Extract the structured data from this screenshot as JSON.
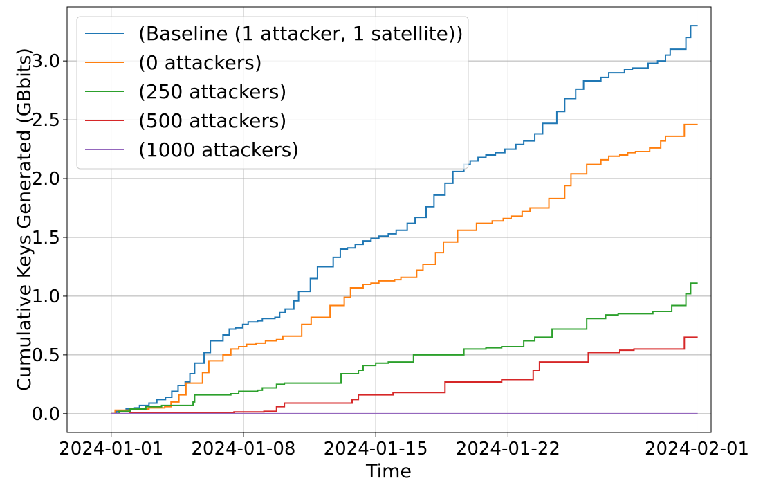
{
  "chart_data": {
    "type": "line",
    "step": true,
    "title": "",
    "xlabel": "Time",
    "ylabel": "Cumulative Keys Generated (GBbits)",
    "xlim": [
      "2023-12-29T16:00",
      "2024-02-01T18:00"
    ],
    "ylim": [
      -0.16,
      3.46
    ],
    "x_ticks": [
      "2024-01-01",
      "2024-01-08",
      "2024-01-15",
      "2024-01-22",
      "2024-02-01"
    ],
    "y_ticks": [
      0.0,
      0.5,
      1.0,
      1.5,
      2.0,
      2.5,
      3.0
    ],
    "y_tick_labels": [
      "0.0",
      "0.5",
      "1.0",
      "1.5",
      "2.0",
      "2.5",
      "3.0"
    ],
    "grid": true,
    "legend_position": "top-left",
    "series": [
      {
        "name": "(Baseline (1 attacker, 1 satellite))",
        "color": "#1f77b4",
        "points": [
          [
            "2024-01-01T00:00",
            0.0
          ],
          [
            "2024-01-01T07:00",
            0.02
          ],
          [
            "2024-01-01T19:00",
            0.04
          ],
          [
            "2024-01-02T05:00",
            0.05
          ],
          [
            "2024-01-02T12:00",
            0.07
          ],
          [
            "2024-01-03T00:00",
            0.09
          ],
          [
            "2024-01-03T10:00",
            0.12
          ],
          [
            "2024-01-03T21:00",
            0.14
          ],
          [
            "2024-01-04T05:00",
            0.19
          ],
          [
            "2024-01-04T13:00",
            0.24
          ],
          [
            "2024-01-04T22:00",
            0.27
          ],
          [
            "2024-01-05T04:00",
            0.34
          ],
          [
            "2024-01-05T10:00",
            0.43
          ],
          [
            "2024-01-05T22:00",
            0.52
          ],
          [
            "2024-01-06T06:00",
            0.62
          ],
          [
            "2024-01-06T16:00",
            0.62
          ],
          [
            "2024-01-06T22:00",
            0.67
          ],
          [
            "2024-01-07T06:00",
            0.72
          ],
          [
            "2024-01-07T14:00",
            0.73
          ],
          [
            "2024-01-07T23:00",
            0.76
          ],
          [
            "2024-01-08T06:00",
            0.78
          ],
          [
            "2024-01-08T18:00",
            0.79
          ],
          [
            "2024-01-09T00:00",
            0.81
          ],
          [
            "2024-01-09T16:00",
            0.82
          ],
          [
            "2024-01-09T22:00",
            0.86
          ],
          [
            "2024-01-10T05:00",
            0.89
          ],
          [
            "2024-01-10T16:00",
            0.96
          ],
          [
            "2024-01-10T22:00",
            1.04
          ],
          [
            "2024-01-11T13:00",
            1.15
          ],
          [
            "2024-01-11T22:00",
            1.25
          ],
          [
            "2024-01-12T18:00",
            1.33
          ],
          [
            "2024-01-13T03:00",
            1.4
          ],
          [
            "2024-01-13T12:00",
            1.41
          ],
          [
            "2024-01-13T22:00",
            1.44
          ],
          [
            "2024-01-14T08:00",
            1.47
          ],
          [
            "2024-01-14T18:00",
            1.49
          ],
          [
            "2024-01-15T04:00",
            1.51
          ],
          [
            "2024-01-15T16:00",
            1.53
          ],
          [
            "2024-01-16T02:00",
            1.56
          ],
          [
            "2024-01-16T16:00",
            1.62
          ],
          [
            "2024-01-17T02:00",
            1.67
          ],
          [
            "2024-01-17T16:00",
            1.76
          ],
          [
            "2024-01-18T02:00",
            1.86
          ],
          [
            "2024-01-18T16:00",
            1.96
          ],
          [
            "2024-01-19T02:00",
            2.06
          ],
          [
            "2024-01-19T16:00",
            2.12
          ],
          [
            "2024-01-20T00:00",
            2.15
          ],
          [
            "2024-01-20T10:00",
            2.18
          ],
          [
            "2024-01-20T20:00",
            2.2
          ],
          [
            "2024-01-21T08:00",
            2.22
          ],
          [
            "2024-01-21T20:00",
            2.25
          ],
          [
            "2024-01-22T10:00",
            2.29
          ],
          [
            "2024-01-22T20:00",
            2.32
          ],
          [
            "2024-01-23T10:00",
            2.38
          ],
          [
            "2024-01-23T20:00",
            2.47
          ],
          [
            "2024-01-24T14:00",
            2.57
          ],
          [
            "2024-01-25T00:00",
            2.68
          ],
          [
            "2024-01-25T14:00",
            2.76
          ],
          [
            "2024-01-26T00:00",
            2.83
          ],
          [
            "2024-01-26T22:00",
            2.86
          ],
          [
            "2024-01-27T08:00",
            2.9
          ],
          [
            "2024-01-28T04:00",
            2.93
          ],
          [
            "2024-01-28T14:00",
            2.94
          ],
          [
            "2024-01-29T10:00",
            2.98
          ],
          [
            "2024-01-29T22:00",
            3.0
          ],
          [
            "2024-01-30T08:00",
            3.05
          ],
          [
            "2024-01-30T14:00",
            3.1
          ],
          [
            "2024-01-31T10:00",
            3.2
          ],
          [
            "2024-01-31T16:00",
            3.3
          ],
          [
            "2024-02-01T01:00",
            3.3
          ]
        ]
      },
      {
        "name": "(0 attackers)",
        "color": "#ff7f0e",
        "points": [
          [
            "2024-01-01T00:00",
            0.0
          ],
          [
            "2024-01-01T05:00",
            0.03
          ],
          [
            "2024-01-02T00:00",
            0.04
          ],
          [
            "2024-01-03T00:00",
            0.05
          ],
          [
            "2024-01-03T20:00",
            0.06
          ],
          [
            "2024-01-04T04:00",
            0.1
          ],
          [
            "2024-01-04T14:00",
            0.16
          ],
          [
            "2024-01-04T23:00",
            0.26
          ],
          [
            "2024-01-05T20:00",
            0.35
          ],
          [
            "2024-01-06T04:00",
            0.45
          ],
          [
            "2024-01-06T22:00",
            0.5
          ],
          [
            "2024-01-07T08:00",
            0.55
          ],
          [
            "2024-01-07T18:00",
            0.57
          ],
          [
            "2024-01-08T04:00",
            0.59
          ],
          [
            "2024-01-08T16:00",
            0.6
          ],
          [
            "2024-01-09T04:00",
            0.62
          ],
          [
            "2024-01-09T18:00",
            0.63
          ],
          [
            "2024-01-10T02:00",
            0.66
          ],
          [
            "2024-01-11T02:00",
            0.76
          ],
          [
            "2024-01-11T14:00",
            0.82
          ],
          [
            "2024-01-12T14:00",
            0.92
          ],
          [
            "2024-01-13T08:00",
            0.99
          ],
          [
            "2024-01-13T16:00",
            1.07
          ],
          [
            "2024-01-14T08:00",
            1.1
          ],
          [
            "2024-01-14T18:00",
            1.11
          ],
          [
            "2024-01-15T04:00",
            1.13
          ],
          [
            "2024-01-16T00:00",
            1.14
          ],
          [
            "2024-01-16T08:00",
            1.16
          ],
          [
            "2024-01-17T04:00",
            1.22
          ],
          [
            "2024-01-17T12:00",
            1.27
          ],
          [
            "2024-01-18T04:00",
            1.37
          ],
          [
            "2024-01-18T14:00",
            1.46
          ],
          [
            "2024-01-19T08:00",
            1.56
          ],
          [
            "2024-01-20T08:00",
            1.62
          ],
          [
            "2024-01-21T04:00",
            1.64
          ],
          [
            "2024-01-21T18:00",
            1.66
          ],
          [
            "2024-01-22T04:00",
            1.68
          ],
          [
            "2024-01-22T18:00",
            1.72
          ],
          [
            "2024-01-23T04:00",
            1.75
          ],
          [
            "2024-01-24T04:00",
            1.83
          ],
          [
            "2024-01-25T00:00",
            1.94
          ],
          [
            "2024-01-25T08:00",
            2.04
          ],
          [
            "2024-01-26T04:00",
            2.12
          ],
          [
            "2024-01-26T22:00",
            2.16
          ],
          [
            "2024-01-27T08:00",
            2.19
          ],
          [
            "2024-01-27T22:00",
            2.2
          ],
          [
            "2024-01-28T08:00",
            2.22
          ],
          [
            "2024-01-28T18:00",
            2.23
          ],
          [
            "2024-01-29T12:00",
            2.26
          ],
          [
            "2024-01-30T02:00",
            2.32
          ],
          [
            "2024-01-30T08:00",
            2.36
          ],
          [
            "2024-01-31T08:00",
            2.46
          ],
          [
            "2024-02-01T01:00",
            2.46
          ]
        ]
      },
      {
        "name": "(250 attackers)",
        "color": "#2ca02c",
        "points": [
          [
            "2024-01-01T00:00",
            0.0
          ],
          [
            "2024-01-01T10:00",
            0.02
          ],
          [
            "2024-01-02T00:00",
            0.04
          ],
          [
            "2024-01-02T20:00",
            0.06
          ],
          [
            "2024-01-03T16:00",
            0.07
          ],
          [
            "2024-01-05T08:00",
            0.1
          ],
          [
            "2024-01-05T10:00",
            0.16
          ],
          [
            "2024-01-07T08:00",
            0.17
          ],
          [
            "2024-01-07T18:00",
            0.19
          ],
          [
            "2024-01-08T18:00",
            0.2
          ],
          [
            "2024-01-09T00:00",
            0.22
          ],
          [
            "2024-01-09T18:00",
            0.25
          ],
          [
            "2024-01-10T04:00",
            0.26
          ],
          [
            "2024-01-13T04:00",
            0.34
          ],
          [
            "2024-01-14T02:00",
            0.37
          ],
          [
            "2024-01-14T08:00",
            0.41
          ],
          [
            "2024-01-15T00:00",
            0.43
          ],
          [
            "2024-01-15T16:00",
            0.44
          ],
          [
            "2024-01-17T00:00",
            0.5
          ],
          [
            "2024-01-19T16:00",
            0.55
          ],
          [
            "2024-01-20T20:00",
            0.56
          ],
          [
            "2024-01-21T16:00",
            0.57
          ],
          [
            "2024-01-22T20:00",
            0.62
          ],
          [
            "2024-01-23T10:00",
            0.65
          ],
          [
            "2024-01-24T08:00",
            0.72
          ],
          [
            "2024-01-26T04:00",
            0.81
          ],
          [
            "2024-01-27T04:00",
            0.84
          ],
          [
            "2024-01-27T20:00",
            0.85
          ],
          [
            "2024-01-29T16:00",
            0.87
          ],
          [
            "2024-01-30T16:00",
            0.92
          ],
          [
            "2024-01-31T10:00",
            1.02
          ],
          [
            "2024-01-31T16:00",
            1.11
          ],
          [
            "2024-02-01T01:00",
            1.11
          ]
        ]
      },
      {
        "name": "(500 attackers)",
        "color": "#d62728",
        "points": [
          [
            "2024-01-01T00:00",
            0.0
          ],
          [
            "2024-01-02T00:00",
            0.005
          ],
          [
            "2024-01-05T00:00",
            0.01
          ],
          [
            "2024-01-07T12:00",
            0.015
          ],
          [
            "2024-01-09T02:00",
            0.02
          ],
          [
            "2024-01-09T18:00",
            0.06
          ],
          [
            "2024-01-10T04:00",
            0.09
          ],
          [
            "2024-01-13T18:00",
            0.12
          ],
          [
            "2024-01-14T02:00",
            0.16
          ],
          [
            "2024-01-15T22:00",
            0.18
          ],
          [
            "2024-01-18T16:00",
            0.27
          ],
          [
            "2024-01-21T16:00",
            0.29
          ],
          [
            "2024-01-23T08:00",
            0.37
          ],
          [
            "2024-01-23T16:00",
            0.44
          ],
          [
            "2024-01-26T06:00",
            0.52
          ],
          [
            "2024-01-27T22:00",
            0.54
          ],
          [
            "2024-01-28T16:00",
            0.55
          ],
          [
            "2024-01-31T08:00",
            0.65
          ],
          [
            "2024-02-01T01:00",
            0.65
          ]
        ]
      },
      {
        "name": "(1000 attackers)",
        "color": "#9467bd",
        "points": [
          [
            "2024-01-01T00:00",
            0.0
          ],
          [
            "2024-02-01T01:00",
            0.0
          ]
        ]
      }
    ]
  }
}
